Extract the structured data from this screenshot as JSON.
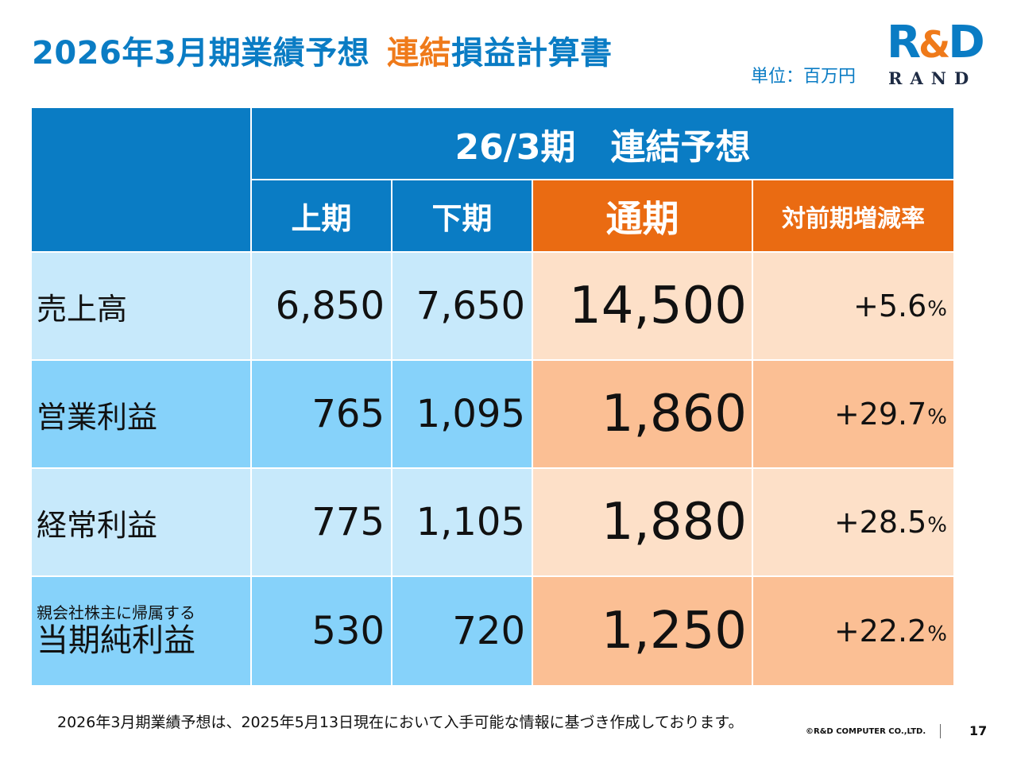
{
  "header": {
    "title_main": "2026年3月期業績予想",
    "title_sub_accent": "連結",
    "title_sub_rest": "損益計算書",
    "unit": "単位：百万円"
  },
  "logo": {
    "mark_r": "R",
    "mark_amp": "&",
    "mark_d": "D",
    "text": "RAND"
  },
  "colors": {
    "brand_blue": "#0a7cc4",
    "accent_orange": "#ea6b12",
    "row_light_blue": "#c7e9fb",
    "row_mid_blue": "#86d2fa",
    "row_light_orange": "#fde0c8",
    "row_mid_orange": "#fbbf94"
  },
  "table": {
    "group_header": "26/3期　連結予想",
    "columns": [
      "上期",
      "下期",
      "通期",
      "対前期増減率"
    ],
    "rows": [
      {
        "label": "売上高",
        "h1": "6,850",
        "h2": "7,650",
        "full": "14,500",
        "change": "+5.6",
        "unit": "%"
      },
      {
        "label": "営業利益",
        "h1": "765",
        "h2": "1,095",
        "full": "1,860",
        "change": "+29.7",
        "unit": "%"
      },
      {
        "label": "経常利益",
        "h1": "775",
        "h2": "1,105",
        "full": "1,880",
        "change": "+28.5",
        "unit": "%"
      },
      {
        "label_sub": "親会社株主に帰属する",
        "label": "当期純利益",
        "h1": "530",
        "h2": "720",
        "full": "1,250",
        "change": "+22.2",
        "unit": "%"
      }
    ]
  },
  "footer": {
    "note": "2026年3月期業績予想は、2025年5月13日現在において入手可能な情報に基づき作成しております。",
    "copyright": "©R&D COMPUTER CO.,LTD.",
    "page_number": "17"
  }
}
